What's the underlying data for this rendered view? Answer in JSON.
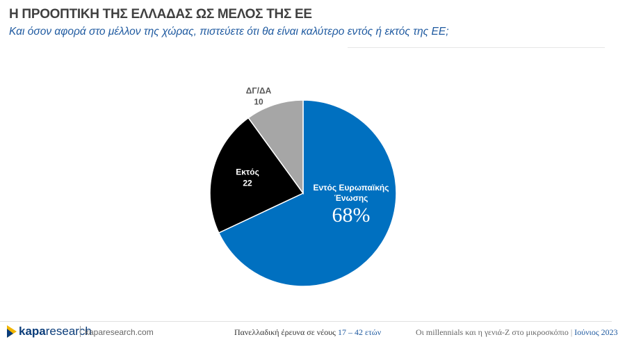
{
  "chart_data": {
    "type": "pie",
    "title": "Η ΠΡΟΟΠΤΙΚΗ ΤΗΣ ΕΛΛΑΔΑΣ ΩΣ ΜΕΛΟΣ ΤΗΣ ΕΕ",
    "subtitle": "Και όσον αφορά στο μέλλον της χώρας, πιστεύετε ότι θα είναι καλύτερο εντός ή εκτός της ΕΕ;",
    "categories": [
      "Εντός Ευρωπαϊκής Ένωσης",
      "Εκτός",
      "ΔΓ/ΔΑ"
    ],
    "values": [
      68,
      22,
      10
    ],
    "value_labels": [
      "68%",
      "22",
      "10"
    ],
    "colors": [
      "#0070c0",
      "#000000",
      "#a6a6a6"
    ]
  },
  "footer": {
    "logo_bold": "kapa",
    "logo_light": "research",
    "website": "kaparesearch.com",
    "survey": "Πανελλαδική έρευνα σε νέους",
    "ages": "17 – 42 ετών",
    "study": "Οι millennials και η γενιά-Z στο μικροσκόπιο",
    "date": "Ιούνιος 2023"
  }
}
